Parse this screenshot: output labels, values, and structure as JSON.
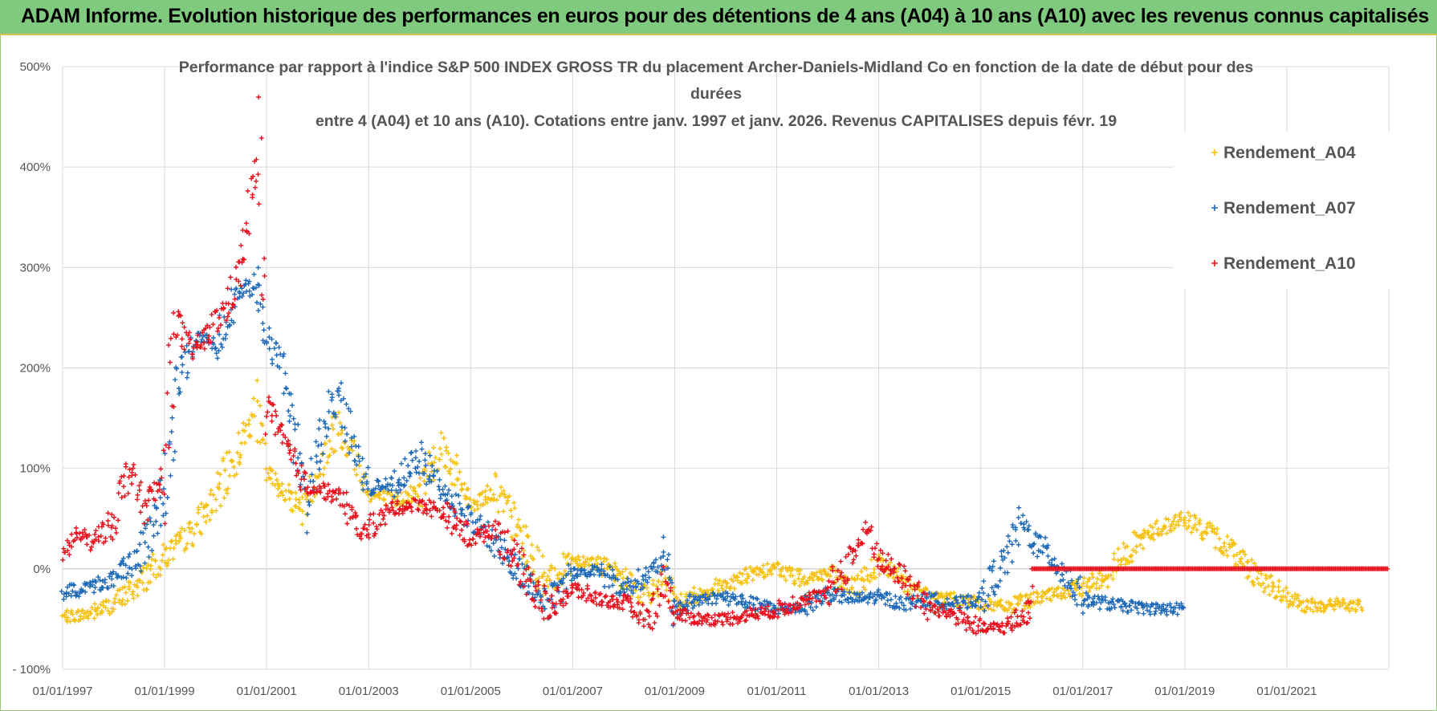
{
  "banner": {
    "title": "ADAM Informe. Evolution historique des performances en euros pour des détentions de 4 ans (A04) à 10 ans (A10) avec les revenus connus capitalisés"
  },
  "colors": {
    "banner_bg": "#7fca7e",
    "A04": "#f5c00f",
    "A07": "#1f6ab8",
    "A10": "#e8101c"
  },
  "chart_data": {
    "type": "scatter",
    "title_lines": [
      "Performance par rapport à l'indice S&P 500 INDEX GROSS TR  du placement Archer-Daniels-Midland Co en fonction de la date de début pour des",
      "durées",
      "entre 4 (A04) et 10 ans (A10).  Cotations entre janv. 1997 et janv. 2026. Revenus CAPITALISES depuis févr. 19"
    ],
    "ylim": [
      -100,
      500
    ],
    "y_ticks": [
      "- 100%",
      "0%",
      "100%",
      "200%",
      "300%",
      "400%",
      "500%"
    ],
    "x_range": [
      1997.0,
      2023.0
    ],
    "x_ticks": [
      "01/01/1997",
      "01/01/1999",
      "01/01/2001",
      "01/01/2003",
      "01/01/2005",
      "01/01/2007",
      "01/01/2009",
      "01/01/2011",
      "01/01/2013",
      "01/01/2015",
      "01/01/2017",
      "01/01/2019",
      "01/01/2021"
    ],
    "legend_position": "top-right",
    "grid": true,
    "series": [
      {
        "name": "Rendement_A04",
        "color": "#f5c00f",
        "points": [
          [
            1997.0,
            -48
          ],
          [
            1997.5,
            -45
          ],
          [
            1998.0,
            -35
          ],
          [
            1998.5,
            -15
          ],
          [
            1999.0,
            12
          ],
          [
            1999.5,
            35
          ],
          [
            2000.0,
            70
          ],
          [
            2000.5,
            125
          ],
          [
            2000.8,
            160
          ],
          [
            2001.0,
            95
          ],
          [
            2001.3,
            80
          ],
          [
            2001.7,
            60
          ],
          [
            2002.0,
            95
          ],
          [
            2002.4,
            145
          ],
          [
            2002.8,
            105
          ],
          [
            2003.0,
            75
          ],
          [
            2003.5,
            68
          ],
          [
            2004.0,
            78
          ],
          [
            2004.4,
            125
          ],
          [
            2004.8,
            85
          ],
          [
            2005.0,
            65
          ],
          [
            2005.5,
            78
          ],
          [
            2006.0,
            30
          ],
          [
            2006.5,
            -15
          ],
          [
            2007.0,
            10
          ],
          [
            2007.5,
            5
          ],
          [
            2008.0,
            -10
          ],
          [
            2008.5,
            -30
          ],
          [
            2008.8,
            -5
          ],
          [
            2009.0,
            -35
          ],
          [
            2009.5,
            -25
          ],
          [
            2010.0,
            -15
          ],
          [
            2010.5,
            -5
          ],
          [
            2011.0,
            0
          ],
          [
            2011.5,
            -10
          ],
          [
            2012.0,
            -5
          ],
          [
            2012.5,
            -20
          ],
          [
            2013.0,
            5
          ],
          [
            2013.5,
            -15
          ],
          [
            2014.0,
            -28
          ],
          [
            2014.5,
            -30
          ],
          [
            2015.0,
            -35
          ],
          [
            2015.5,
            -38
          ],
          [
            2016.0,
            -30
          ],
          [
            2016.5,
            -25
          ],
          [
            2017.0,
            -18
          ],
          [
            2017.5,
            -5
          ],
          [
            2018.0,
            25
          ],
          [
            2018.5,
            40
          ],
          [
            2019.0,
            50
          ],
          [
            2019.5,
            35
          ],
          [
            2020.0,
            15
          ],
          [
            2020.5,
            -10
          ],
          [
            2021.0,
            -30
          ],
          [
            2021.5,
            -38
          ],
          [
            2022.0,
            -35
          ],
          [
            2022.5,
            -38
          ]
        ]
      },
      {
        "name": "Rendement_A07",
        "color": "#1f6ab8",
        "points": [
          [
            1997.0,
            -25
          ],
          [
            1997.5,
            -18
          ],
          [
            1998.0,
            -10
          ],
          [
            1998.5,
            10
          ],
          [
            1999.0,
            75
          ],
          [
            1999.3,
            190
          ],
          [
            1999.6,
            230
          ],
          [
            2000.0,
            225
          ],
          [
            2000.4,
            270
          ],
          [
            2000.8,
            285
          ],
          [
            2001.0,
            230
          ],
          [
            2001.3,
            200
          ],
          [
            2001.5,
            150
          ],
          [
            2001.8,
            60
          ],
          [
            2002.0,
            120
          ],
          [
            2002.4,
            180
          ],
          [
            2002.7,
            120
          ],
          [
            2003.0,
            80
          ],
          [
            2003.5,
            85
          ],
          [
            2004.0,
            110
          ],
          [
            2004.5,
            75
          ],
          [
            2005.0,
            50
          ],
          [
            2005.5,
            25
          ],
          [
            2006.0,
            -5
          ],
          [
            2006.5,
            -35
          ],
          [
            2007.0,
            -5
          ],
          [
            2007.5,
            0
          ],
          [
            2008.0,
            -20
          ],
          [
            2008.5,
            -5
          ],
          [
            2008.8,
            10
          ],
          [
            2009.0,
            -40
          ],
          [
            2009.5,
            -30
          ],
          [
            2010.0,
            -28
          ],
          [
            2010.5,
            -35
          ],
          [
            2011.0,
            -40
          ],
          [
            2011.5,
            -38
          ],
          [
            2012.0,
            -25
          ],
          [
            2012.5,
            -30
          ],
          [
            2013.0,
            -28
          ],
          [
            2013.5,
            -35
          ],
          [
            2014.0,
            -30
          ],
          [
            2014.5,
            -35
          ],
          [
            2015.0,
            -30
          ],
          [
            2015.5,
            10
          ],
          [
            2015.8,
            48
          ],
          [
            2016.0,
            30
          ],
          [
            2016.5,
            5
          ],
          [
            2017.0,
            -30
          ],
          [
            2017.5,
            -35
          ],
          [
            2018.0,
            -38
          ],
          [
            2018.5,
            -40
          ],
          [
            2019.0,
            -40
          ]
        ]
      },
      {
        "name": "Rendement_A10",
        "color": "#e8101c",
        "points": [
          [
            1997.0,
            15
          ],
          [
            1997.3,
            35
          ],
          [
            1997.6,
            25
          ],
          [
            1998.0,
            50
          ],
          [
            1998.3,
            100
          ],
          [
            1998.6,
            60
          ],
          [
            1999.0,
            90
          ],
          [
            1999.2,
            250
          ],
          [
            1999.5,
            215
          ],
          [
            1999.8,
            230
          ],
          [
            2000.2,
            260
          ],
          [
            2000.5,
            300
          ],
          [
            2000.7,
            370
          ],
          [
            2000.85,
            410
          ],
          [
            2001.0,
            170
          ],
          [
            2001.2,
            140
          ],
          [
            2001.5,
            110
          ],
          [
            2001.8,
            80
          ],
          [
            2002.0,
            80
          ],
          [
            2002.5,
            70
          ],
          [
            2002.8,
            35
          ],
          [
            2003.0,
            40
          ],
          [
            2003.5,
            60
          ],
          [
            2004.0,
            65
          ],
          [
            2004.5,
            55
          ],
          [
            2005.0,
            30
          ],
          [
            2005.5,
            40
          ],
          [
            2006.0,
            0
          ],
          [
            2006.5,
            -40
          ],
          [
            2007.0,
            -20
          ],
          [
            2007.5,
            -30
          ],
          [
            2008.0,
            -35
          ],
          [
            2008.5,
            -50
          ],
          [
            2008.8,
            -10
          ],
          [
            2009.0,
            -45
          ],
          [
            2009.5,
            -50
          ],
          [
            2010.0,
            -50
          ],
          [
            2010.5,
            -45
          ],
          [
            2011.0,
            -42
          ],
          [
            2011.5,
            -30
          ],
          [
            2012.0,
            -25
          ],
          [
            2012.5,
            15
          ],
          [
            2012.8,
            40
          ],
          [
            2013.0,
            10
          ],
          [
            2013.5,
            -10
          ],
          [
            2014.0,
            -40
          ],
          [
            2014.5,
            -45
          ],
          [
            2015.0,
            -60
          ],
          [
            2015.5,
            -58
          ],
          [
            2016.0,
            -40
          ],
          [
            2016.001,
            0
          ],
          [
            2023.0,
            0
          ]
        ]
      }
    ]
  }
}
